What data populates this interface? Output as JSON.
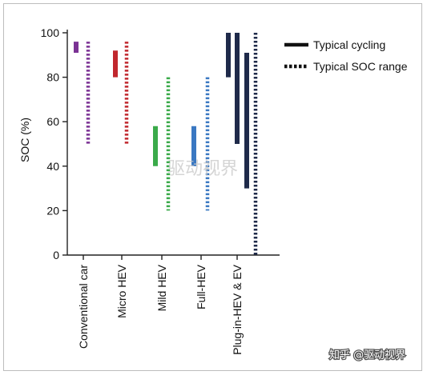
{
  "chart_data": {
    "type": "bar",
    "subtype": "floating-range",
    "ylabel": "SOC (%)",
    "ylim": [
      0,
      100
    ],
    "yticks": [
      0,
      20,
      40,
      60,
      80,
      100
    ],
    "categories": [
      "Conventional car",
      "Micro HEV",
      "Mild HEV",
      "Full-HEV",
      "Plug-in-HEV & EV"
    ],
    "legend": {
      "placement": "top-right",
      "entries": [
        {
          "label": "Typical cycling",
          "style": "solid"
        },
        {
          "label": "Typical SOC range",
          "style": "dotted"
        }
      ]
    },
    "series": [
      {
        "category": "Conventional car",
        "color": "#7b3294",
        "cycling": [
          [
            91,
            96
          ]
        ],
        "soc_range": [
          50,
          96
        ]
      },
      {
        "category": "Micro HEV",
        "color": "#c1272d",
        "cycling": [
          [
            80,
            92
          ]
        ],
        "soc_range": [
          50,
          96
        ]
      },
      {
        "category": "Mild HEV",
        "color": "#3aaa4a",
        "cycling": [
          [
            40,
            58
          ]
        ],
        "soc_range": [
          20,
          80
        ]
      },
      {
        "category": "Full-HEV",
        "color": "#3a78c2",
        "cycling": [
          [
            40,
            58
          ]
        ],
        "soc_range": [
          20,
          80
        ]
      },
      {
        "category": "Plug-in-HEV & EV",
        "color": "#1f2a4a",
        "cycling": [
          [
            80,
            100
          ],
          [
            50,
            100
          ],
          [
            30,
            91
          ]
        ],
        "soc_range": [
          0,
          100
        ]
      }
    ]
  },
  "watermarks": {
    "center": "驱动视界",
    "corner": "知乎 @驱动视界"
  }
}
